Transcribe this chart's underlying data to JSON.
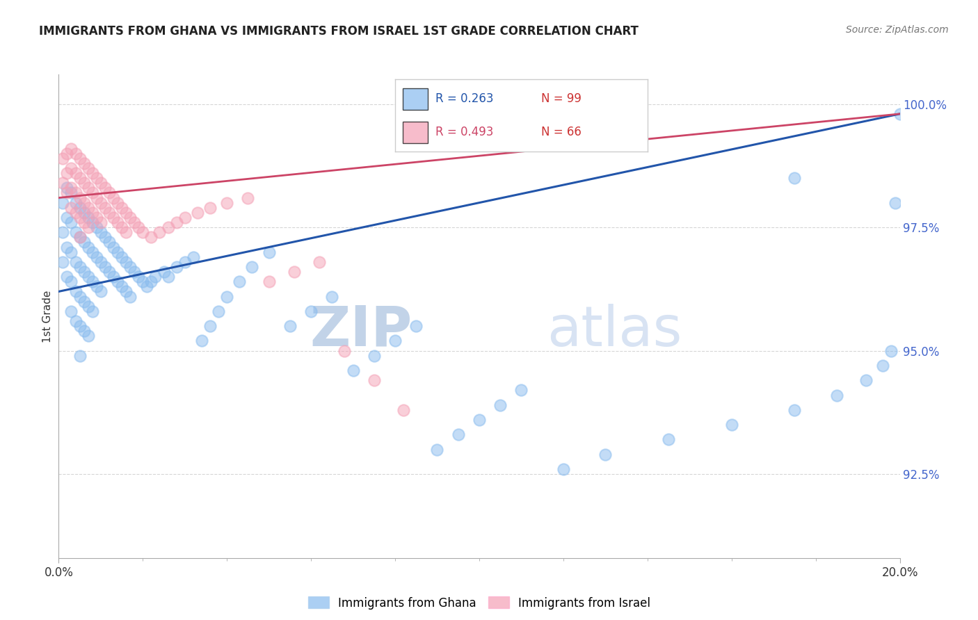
{
  "title": "IMMIGRANTS FROM GHANA VS IMMIGRANTS FROM ISRAEL 1ST GRADE CORRELATION CHART",
  "source": "Source: ZipAtlas.com",
  "ylabel": "1st Grade",
  "legend_label1": "Immigrants from Ghana",
  "legend_label2": "Immigrants from Israel",
  "r1": 0.263,
  "n1": 99,
  "r2": 0.493,
  "n2": 66,
  "color_ghana": "#88bbee",
  "color_israel": "#f4a0b5",
  "color_ghana_line": "#2255aa",
  "color_israel_line": "#cc4466",
  "watermark_zip": "ZIP",
  "watermark_atlas": "atlas",
  "watermark_color": "#c8d8ee",
  "xlim": [
    0.0,
    0.2
  ],
  "ylim": [
    0.908,
    1.006
  ],
  "yticks": [
    0.925,
    0.95,
    0.975,
    1.0
  ],
  "ytick_labels": [
    "92.5%",
    "95.0%",
    "97.5%",
    "100.0%"
  ],
  "background_color": "#ffffff",
  "grid_color": "#bbbbbb",
  "ghana_x": [
    0.001,
    0.001,
    0.001,
    0.002,
    0.002,
    0.002,
    0.002,
    0.003,
    0.003,
    0.003,
    0.003,
    0.003,
    0.004,
    0.004,
    0.004,
    0.004,
    0.004,
    0.005,
    0.005,
    0.005,
    0.005,
    0.005,
    0.005,
    0.006,
    0.006,
    0.006,
    0.006,
    0.006,
    0.007,
    0.007,
    0.007,
    0.007,
    0.007,
    0.008,
    0.008,
    0.008,
    0.008,
    0.009,
    0.009,
    0.009,
    0.01,
    0.01,
    0.01,
    0.011,
    0.011,
    0.012,
    0.012,
    0.013,
    0.013,
    0.014,
    0.014,
    0.015,
    0.015,
    0.016,
    0.016,
    0.017,
    0.017,
    0.018,
    0.019,
    0.02,
    0.021,
    0.022,
    0.023,
    0.025,
    0.026,
    0.028,
    0.03,
    0.032,
    0.034,
    0.036,
    0.038,
    0.04,
    0.043,
    0.046,
    0.05,
    0.055,
    0.06,
    0.065,
    0.07,
    0.075,
    0.08,
    0.085,
    0.09,
    0.095,
    0.1,
    0.105,
    0.11,
    0.12,
    0.13,
    0.145,
    0.16,
    0.175,
    0.185,
    0.192,
    0.196,
    0.198,
    0.199,
    0.2,
    0.175
  ],
  "ghana_y": [
    0.98,
    0.974,
    0.968,
    0.983,
    0.977,
    0.971,
    0.965,
    0.982,
    0.976,
    0.97,
    0.964,
    0.958,
    0.98,
    0.974,
    0.968,
    0.962,
    0.956,
    0.979,
    0.973,
    0.967,
    0.961,
    0.955,
    0.949,
    0.978,
    0.972,
    0.966,
    0.96,
    0.954,
    0.977,
    0.971,
    0.965,
    0.959,
    0.953,
    0.976,
    0.97,
    0.964,
    0.958,
    0.975,
    0.969,
    0.963,
    0.974,
    0.968,
    0.962,
    0.973,
    0.967,
    0.972,
    0.966,
    0.971,
    0.965,
    0.97,
    0.964,
    0.969,
    0.963,
    0.968,
    0.962,
    0.967,
    0.961,
    0.966,
    0.965,
    0.964,
    0.963,
    0.964,
    0.965,
    0.966,
    0.965,
    0.967,
    0.968,
    0.969,
    0.952,
    0.955,
    0.958,
    0.961,
    0.964,
    0.967,
    0.97,
    0.955,
    0.958,
    0.961,
    0.946,
    0.949,
    0.952,
    0.955,
    0.93,
    0.933,
    0.936,
    0.939,
    0.942,
    0.926,
    0.929,
    0.932,
    0.935,
    0.938,
    0.941,
    0.944,
    0.947,
    0.95,
    0.98,
    0.998,
    0.985
  ],
  "israel_x": [
    0.001,
    0.001,
    0.002,
    0.002,
    0.002,
    0.003,
    0.003,
    0.003,
    0.003,
    0.004,
    0.004,
    0.004,
    0.004,
    0.005,
    0.005,
    0.005,
    0.005,
    0.005,
    0.006,
    0.006,
    0.006,
    0.006,
    0.007,
    0.007,
    0.007,
    0.007,
    0.008,
    0.008,
    0.008,
    0.009,
    0.009,
    0.009,
    0.01,
    0.01,
    0.01,
    0.011,
    0.011,
    0.012,
    0.012,
    0.013,
    0.013,
    0.014,
    0.014,
    0.015,
    0.015,
    0.016,
    0.016,
    0.017,
    0.018,
    0.019,
    0.02,
    0.022,
    0.024,
    0.026,
    0.028,
    0.03,
    0.033,
    0.036,
    0.04,
    0.045,
    0.05,
    0.056,
    0.062,
    0.068,
    0.075,
    0.082
  ],
  "israel_y": [
    0.989,
    0.984,
    0.99,
    0.986,
    0.982,
    0.991,
    0.987,
    0.983,
    0.979,
    0.99,
    0.986,
    0.982,
    0.978,
    0.989,
    0.985,
    0.981,
    0.977,
    0.973,
    0.988,
    0.984,
    0.98,
    0.976,
    0.987,
    0.983,
    0.979,
    0.975,
    0.986,
    0.982,
    0.978,
    0.985,
    0.981,
    0.977,
    0.984,
    0.98,
    0.976,
    0.983,
    0.979,
    0.982,
    0.978,
    0.981,
    0.977,
    0.98,
    0.976,
    0.979,
    0.975,
    0.978,
    0.974,
    0.977,
    0.976,
    0.975,
    0.974,
    0.973,
    0.974,
    0.975,
    0.976,
    0.977,
    0.978,
    0.979,
    0.98,
    0.981,
    0.964,
    0.966,
    0.968,
    0.95,
    0.944,
    0.938
  ]
}
